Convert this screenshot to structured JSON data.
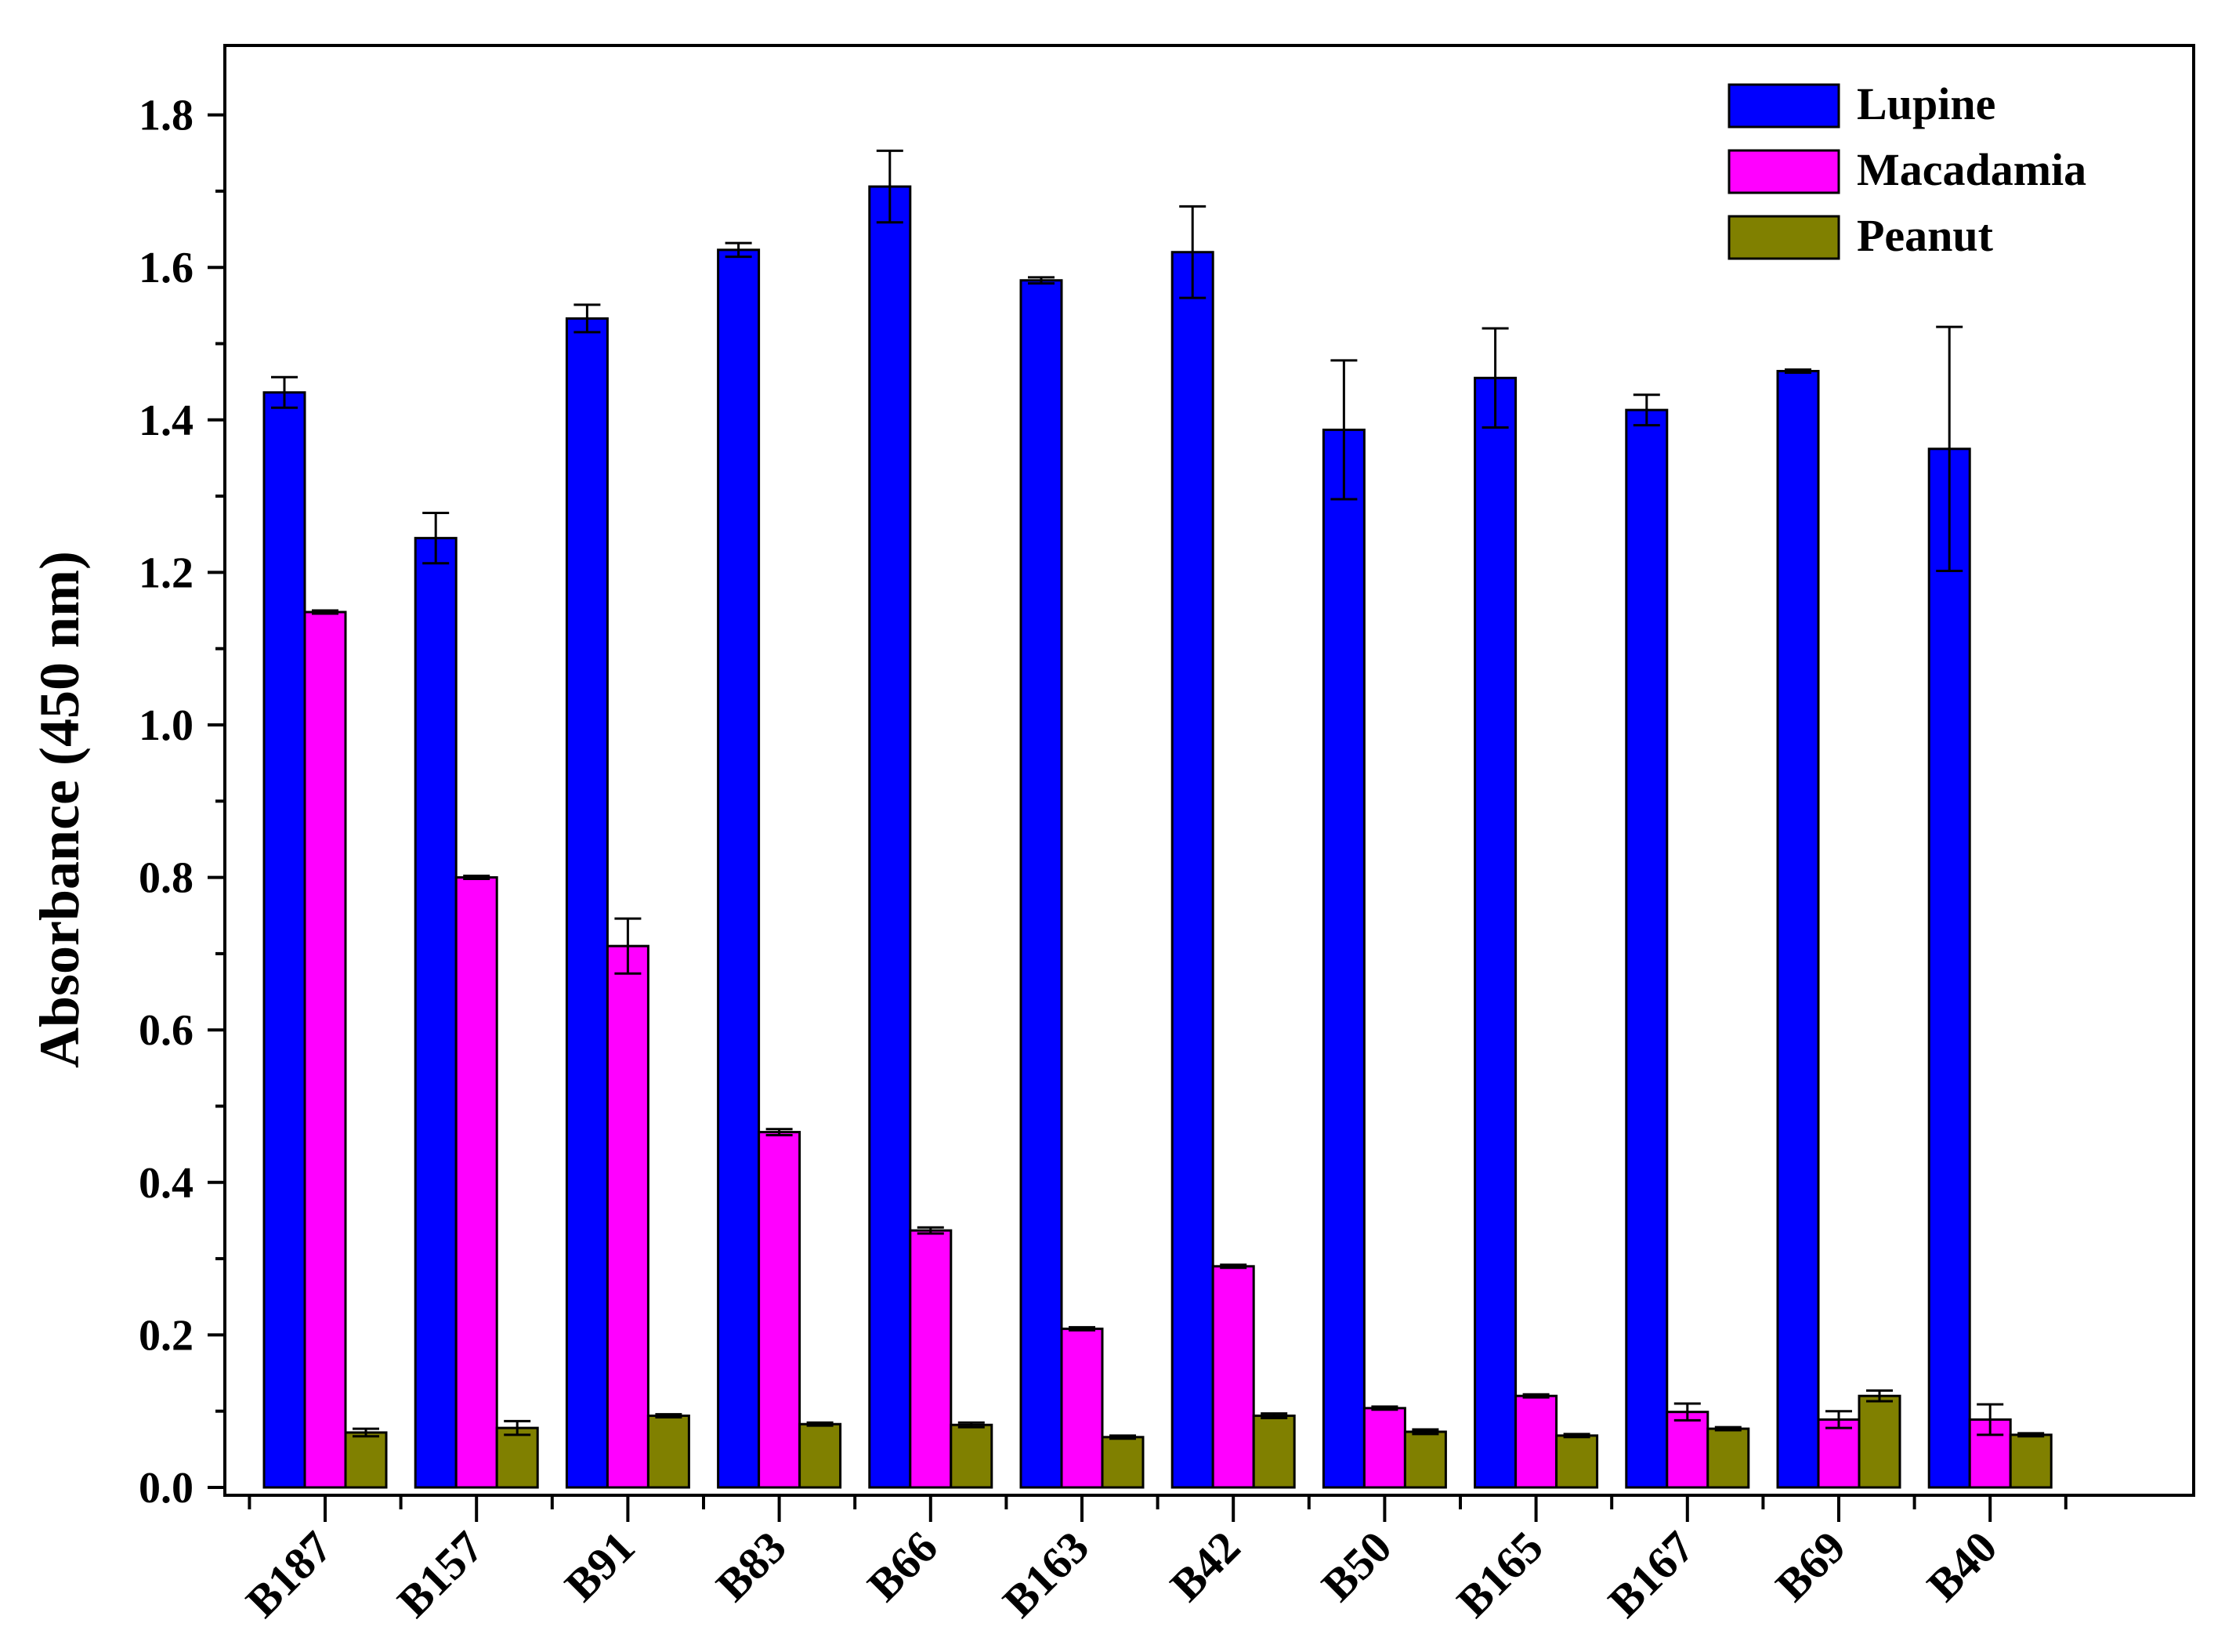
{
  "chart_data": {
    "type": "bar",
    "title": "",
    "xlabel": "",
    "ylabel": "Absorbance (450 nm)",
    "ylim": [
      0,
      1.9
    ],
    "yticks": [
      {
        "value": 0.0,
        "label": "0.0"
      },
      {
        "value": 0.2,
        "label": "0.2"
      },
      {
        "value": 0.4,
        "label": "0.4"
      },
      {
        "value": 0.6,
        "label": "0.6"
      },
      {
        "value": 0.8,
        "label": "0.8"
      },
      {
        "value": 1.0,
        "label": "1.0"
      },
      {
        "value": 1.2,
        "label": "1.2"
      },
      {
        "value": 1.4,
        "label": "1.4"
      },
      {
        "value": 1.6,
        "label": "1.6"
      },
      {
        "value": 1.8,
        "label": "1.8"
      }
    ],
    "grid": false,
    "legend_position": "top-right",
    "categories": [
      "B187",
      "B157",
      "B91",
      "B83",
      "B66",
      "B163",
      "B42",
      "B50",
      "B165",
      "B167",
      "B69",
      "B40"
    ],
    "series": [
      {
        "name": "Lupine",
        "color": "#0000ff",
        "values": [
          1.436,
          1.245,
          1.533,
          1.623,
          1.706,
          1.583,
          1.62,
          1.387,
          1.455,
          1.413,
          1.464,
          1.362
        ],
        "errors": [
          0.02,
          0.033,
          0.018,
          0.009,
          0.047,
          0.004,
          0.06,
          0.091,
          0.065,
          0.02,
          0.002,
          0.16
        ]
      },
      {
        "name": "Macadamia",
        "color": "#ff00ff",
        "values": [
          1.148,
          0.8,
          0.71,
          0.466,
          0.337,
          0.208,
          0.29,
          0.104,
          0.12,
          0.099,
          0.089,
          0.089
        ],
        "errors": [
          0.002,
          0.002,
          0.036,
          0.004,
          0.004,
          0.002,
          0.002,
          0.002,
          0.002,
          0.011,
          0.011,
          0.02
        ]
      },
      {
        "name": "Peanut",
        "color": "#808000",
        "values": [
          0.072,
          0.078,
          0.094,
          0.083,
          0.082,
          0.066,
          0.094,
          0.073,
          0.068,
          0.077,
          0.12,
          0.069
        ],
        "errors": [
          0.005,
          0.009,
          0.002,
          0.002,
          0.003,
          0.002,
          0.003,
          0.003,
          0.002,
          0.002,
          0.007,
          0.002
        ]
      }
    ]
  }
}
